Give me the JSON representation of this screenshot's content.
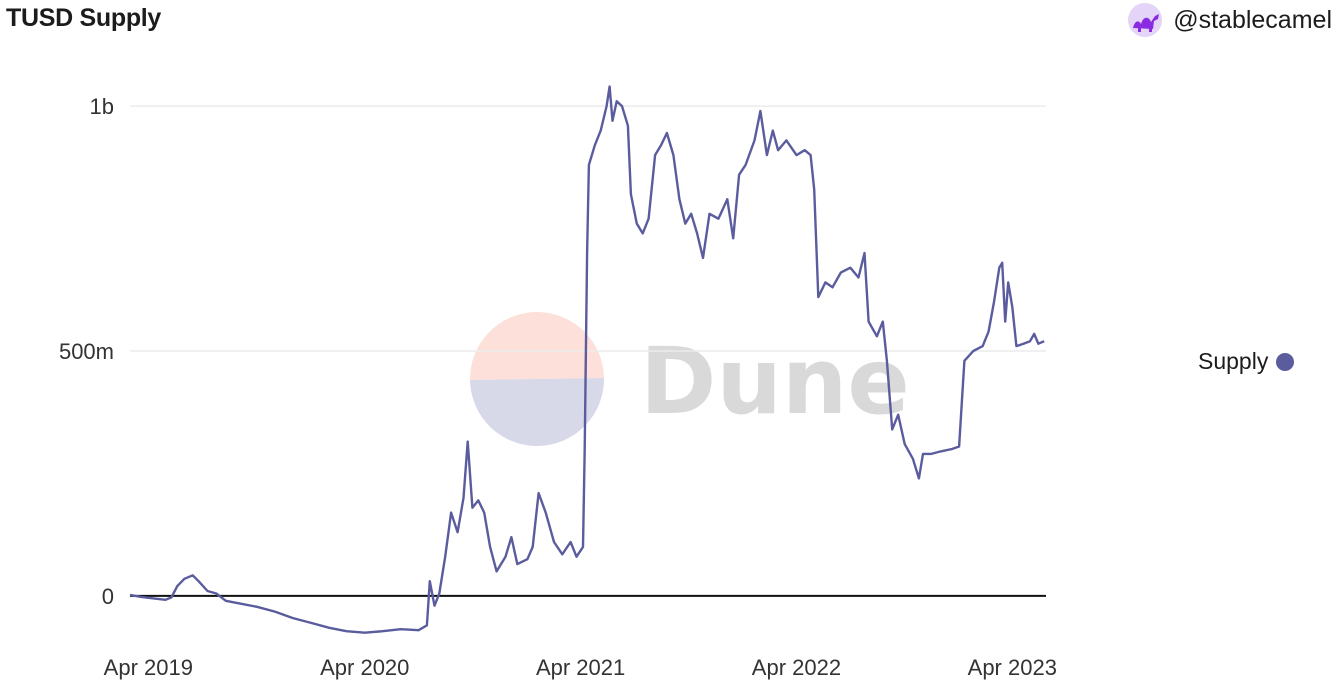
{
  "title": "TUSD Supply",
  "author": {
    "handle": "@stablecamel",
    "avatar_icon": "camel-avatar-icon"
  },
  "watermark": {
    "text": "Dune"
  },
  "colors": {
    "series": "#5b5c9e",
    "watermark_top": "#fde0da",
    "watermark_bottom": "#d8d9e8",
    "grid": "#ececec",
    "zero_line": "#111111"
  },
  "chart_data": {
    "type": "line",
    "title": "TUSD Supply",
    "xlabel": "",
    "ylabel": "",
    "ylim": [
      -90000000,
      1090000000
    ],
    "y_ticks": [
      {
        "value": 0,
        "label": "0"
      },
      {
        "value": 500000000,
        "label": "500m"
      },
      {
        "value": 1000000000,
        "label": "1b"
      }
    ],
    "x_ticks": [
      {
        "date": "2019-04-01",
        "label": "Apr 2019"
      },
      {
        "date": "2020-04-01",
        "label": "Apr 2020"
      },
      {
        "date": "2021-04-01",
        "label": "Apr 2021"
      },
      {
        "date": "2022-04-01",
        "label": "Apr 2022"
      },
      {
        "date": "2023-04-01",
        "label": "Apr 2023"
      }
    ],
    "grid": true,
    "legend_position": "right",
    "series": [
      {
        "name": "Supply",
        "points": [
          [
            "2019-03-01",
            2000000
          ],
          [
            "2019-03-20",
            -2000000
          ],
          [
            "2019-04-10",
            -5000000
          ],
          [
            "2019-04-30",
            -8000000
          ],
          [
            "2019-05-10",
            -3000000
          ],
          [
            "2019-05-20",
            20000000
          ],
          [
            "2019-06-01",
            35000000
          ],
          [
            "2019-06-15",
            42000000
          ],
          [
            "2019-06-25",
            30000000
          ],
          [
            "2019-07-10",
            10000000
          ],
          [
            "2019-07-25",
            5000000
          ],
          [
            "2019-08-10",
            -10000000
          ],
          [
            "2019-09-01",
            -15000000
          ],
          [
            "2019-10-01",
            -22000000
          ],
          [
            "2019-11-01",
            -32000000
          ],
          [
            "2019-12-01",
            -45000000
          ],
          [
            "2020-01-01",
            -55000000
          ],
          [
            "2020-02-01",
            -65000000
          ],
          [
            "2020-03-01",
            -72000000
          ],
          [
            "2020-04-01",
            -75000000
          ],
          [
            "2020-05-01",
            -72000000
          ],
          [
            "2020-06-01",
            -68000000
          ],
          [
            "2020-07-01",
            -70000000
          ],
          [
            "2020-07-15",
            -60000000
          ],
          [
            "2020-07-20",
            30000000
          ],
          [
            "2020-07-28",
            -20000000
          ],
          [
            "2020-08-05",
            5000000
          ],
          [
            "2020-08-15",
            80000000
          ],
          [
            "2020-08-25",
            170000000
          ],
          [
            "2020-09-05",
            130000000
          ],
          [
            "2020-09-15",
            200000000
          ],
          [
            "2020-09-22",
            315000000
          ],
          [
            "2020-09-30",
            180000000
          ],
          [
            "2020-10-10",
            195000000
          ],
          [
            "2020-10-20",
            170000000
          ],
          [
            "2020-10-30",
            100000000
          ],
          [
            "2020-11-10",
            50000000
          ],
          [
            "2020-11-25",
            80000000
          ],
          [
            "2020-12-05",
            120000000
          ],
          [
            "2020-12-15",
            65000000
          ],
          [
            "2021-01-01",
            75000000
          ],
          [
            "2021-01-10",
            100000000
          ],
          [
            "2021-01-20",
            210000000
          ],
          [
            "2021-02-01",
            170000000
          ],
          [
            "2021-02-15",
            110000000
          ],
          [
            "2021-03-01",
            85000000
          ],
          [
            "2021-03-15",
            110000000
          ],
          [
            "2021-03-25",
            80000000
          ],
          [
            "2021-04-05",
            100000000
          ],
          [
            "2021-04-08",
            300000000
          ],
          [
            "2021-04-12",
            700000000
          ],
          [
            "2021-04-15",
            880000000
          ],
          [
            "2021-04-25",
            920000000
          ],
          [
            "2021-05-05",
            950000000
          ],
          [
            "2021-05-15",
            1000000000
          ],
          [
            "2021-05-20",
            1040000000
          ],
          [
            "2021-05-25",
            970000000
          ],
          [
            "2021-06-01",
            1010000000
          ],
          [
            "2021-06-10",
            1000000000
          ],
          [
            "2021-06-20",
            960000000
          ],
          [
            "2021-06-25",
            820000000
          ],
          [
            "2021-07-05",
            760000000
          ],
          [
            "2021-07-15",
            740000000
          ],
          [
            "2021-07-25",
            770000000
          ],
          [
            "2021-08-05",
            900000000
          ],
          [
            "2021-08-15",
            920000000
          ],
          [
            "2021-08-25",
            945000000
          ],
          [
            "2021-09-05",
            900000000
          ],
          [
            "2021-09-15",
            810000000
          ],
          [
            "2021-09-25",
            760000000
          ],
          [
            "2021-10-05",
            780000000
          ],
          [
            "2021-10-15",
            740000000
          ],
          [
            "2021-10-25",
            690000000
          ],
          [
            "2021-11-05",
            780000000
          ],
          [
            "2021-11-20",
            770000000
          ],
          [
            "2021-12-05",
            810000000
          ],
          [
            "2021-12-15",
            730000000
          ],
          [
            "2021-12-25",
            860000000
          ],
          [
            "2022-01-05",
            880000000
          ],
          [
            "2022-01-20",
            930000000
          ],
          [
            "2022-01-30",
            990000000
          ],
          [
            "2022-02-10",
            900000000
          ],
          [
            "2022-02-20",
            950000000
          ],
          [
            "2022-03-01",
            910000000
          ],
          [
            "2022-03-15",
            930000000
          ],
          [
            "2022-04-01",
            900000000
          ],
          [
            "2022-04-15",
            910000000
          ],
          [
            "2022-04-25",
            900000000
          ],
          [
            "2022-05-01",
            830000000
          ],
          [
            "2022-05-08",
            610000000
          ],
          [
            "2022-05-20",
            640000000
          ],
          [
            "2022-06-01",
            630000000
          ],
          [
            "2022-06-15",
            660000000
          ],
          [
            "2022-07-01",
            670000000
          ],
          [
            "2022-07-15",
            650000000
          ],
          [
            "2022-07-25",
            700000000
          ],
          [
            "2022-08-01",
            560000000
          ],
          [
            "2022-08-15",
            530000000
          ],
          [
            "2022-08-25",
            560000000
          ],
          [
            "2022-09-01",
            480000000
          ],
          [
            "2022-09-10",
            340000000
          ],
          [
            "2022-09-20",
            370000000
          ],
          [
            "2022-10-01",
            310000000
          ],
          [
            "2022-10-15",
            280000000
          ],
          [
            "2022-10-25",
            240000000
          ],
          [
            "2022-11-01",
            290000000
          ],
          [
            "2022-11-15",
            290000000
          ],
          [
            "2022-12-01",
            295000000
          ],
          [
            "2022-12-20",
            300000000
          ],
          [
            "2023-01-01",
            305000000
          ],
          [
            "2023-01-10",
            480000000
          ],
          [
            "2023-01-25",
            500000000
          ],
          [
            "2023-02-10",
            510000000
          ],
          [
            "2023-02-20",
            540000000
          ],
          [
            "2023-03-01",
            600000000
          ],
          [
            "2023-03-10",
            670000000
          ],
          [
            "2023-03-15",
            680000000
          ],
          [
            "2023-03-20",
            560000000
          ],
          [
            "2023-03-25",
            640000000
          ],
          [
            "2023-04-01",
            590000000
          ],
          [
            "2023-04-08",
            510000000
          ],
          [
            "2023-04-20",
            515000000
          ],
          [
            "2023-05-01",
            520000000
          ],
          [
            "2023-05-08",
            535000000
          ],
          [
            "2023-05-15",
            515000000
          ],
          [
            "2023-05-25",
            520000000
          ]
        ]
      }
    ]
  }
}
